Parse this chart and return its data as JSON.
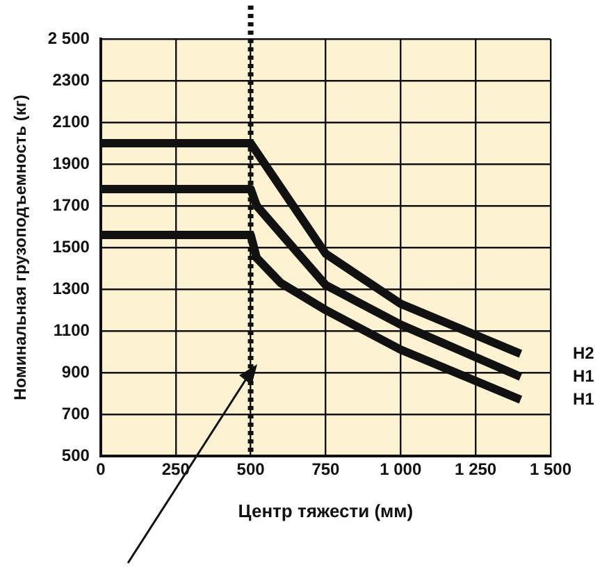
{
  "chart_data": {
    "type": "line",
    "xlabel": "Центр тяжести (мм)",
    "ylabel": "Номинальная грузоподъемность (кг)",
    "xlim": [
      0,
      1500
    ],
    "xticks": [
      0,
      250,
      500,
      750,
      {
        "value": 1000,
        "label": "1 000"
      },
      {
        "value": 1250,
        "label": "1 250"
      },
      {
        "value": 1500,
        "label": "1 500"
      }
    ],
    "ylim": [
      500,
      2500
    ],
    "yticks": [
      500,
      700,
      900,
      1100,
      1300,
      1500,
      1700,
      1900,
      2100,
      2300,
      {
        "value": 2500,
        "label": "2 500"
      }
    ],
    "grid": true,
    "legend": false,
    "marker": "none",
    "line_style": "solid",
    "series": [
      {
        "name": "H2",
        "color": "#111111",
        "x": [
          0,
          500,
          750,
          1000,
          1400
        ],
        "values": [
          2000,
          2000,
          1470,
          1230,
          990
        ]
      },
      {
        "name": "H1",
        "color": "#111111",
        "x": [
          0,
          500,
          520,
          750,
          1000,
          1400
        ],
        "values": [
          1780,
          1780,
          1700,
          1320,
          1130,
          880
        ]
      },
      {
        "name": "H1",
        "color": "#111111",
        "x": [
          0,
          500,
          520,
          600,
          750,
          1000,
          1400
        ],
        "values": [
          1560,
          1560,
          1450,
          1330,
          1200,
          1010,
          770
        ]
      }
    ],
    "ref_lines": [
      {
        "axis": "x",
        "value": 500,
        "line_style": "dotted",
        "color": "#111111"
      }
    ]
  }
}
